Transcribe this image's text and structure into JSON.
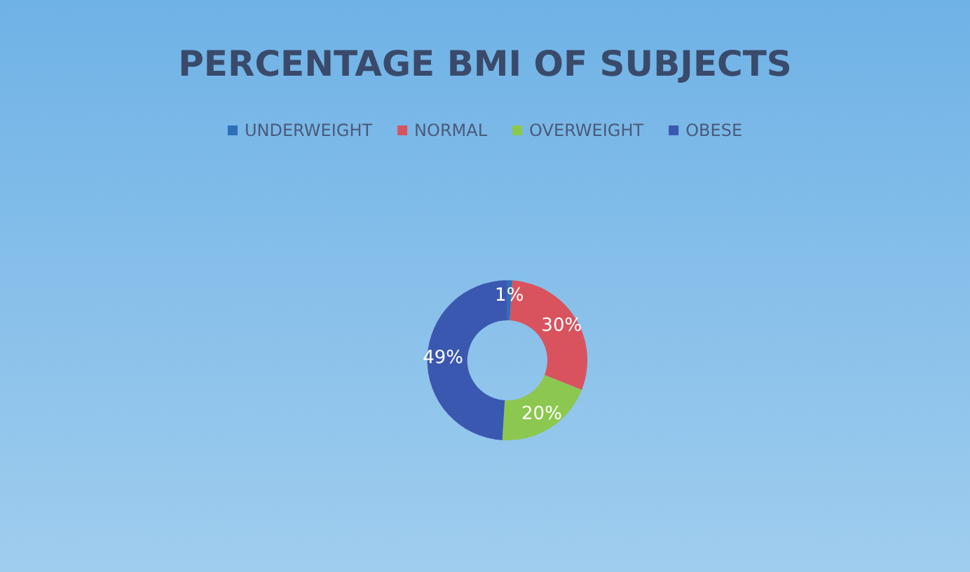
{
  "chart_data": {
    "type": "donut",
    "title": "PERCENTAGE BMI OF SUBJECTS",
    "categories": [
      "UNDERWEIGHT",
      "NORMAL",
      "OVERWEIGHT",
      "OBESE"
    ],
    "values": [
      1,
      30,
      20,
      49
    ],
    "colors": [
      "#2f6fb8",
      "#d9535f",
      "#8cc850",
      "#3b58b0"
    ],
    "value_labels": [
      "1%",
      "30%",
      "20%",
      "49%"
    ],
    "legend": "top"
  }
}
